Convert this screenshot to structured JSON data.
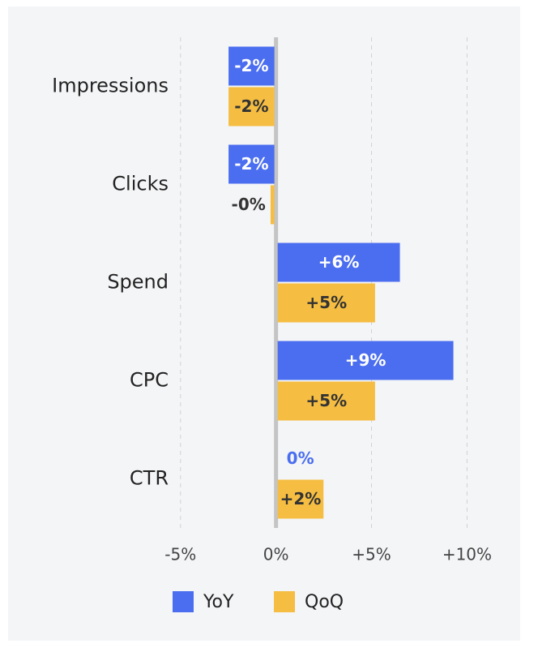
{
  "chart_data": {
    "type": "bar",
    "orientation": "horizontal",
    "categories": [
      "Impressions",
      "Clicks",
      "Spend",
      "CPC",
      "CTR"
    ],
    "series": [
      {
        "name": "YoY",
        "color": "#4b6ef0",
        "values": [
          -2.4,
          -2.4,
          6.4,
          9.2,
          0
        ],
        "value_labels": [
          "-2%",
          "-2%",
          "+6%",
          "+9%",
          "0%"
        ]
      },
      {
        "name": "QoQ",
        "color": "#f5bd42",
        "values": [
          -2.4,
          -0.2,
          5.1,
          5.1,
          2.4
        ],
        "value_labels": [
          "-2%",
          "-0%",
          "+5%",
          "+5%",
          "+2%"
        ]
      }
    ],
    "xlim": [
      -5.5,
      11
    ],
    "xticks": [
      {
        "value": -5,
        "label": "-5%"
      },
      {
        "value": 0,
        "label": "0%"
      },
      {
        "value": 5,
        "label": "+5%"
      },
      {
        "value": 10,
        "label": "+10%"
      }
    ],
    "grid": true,
    "legend": "bottom"
  }
}
